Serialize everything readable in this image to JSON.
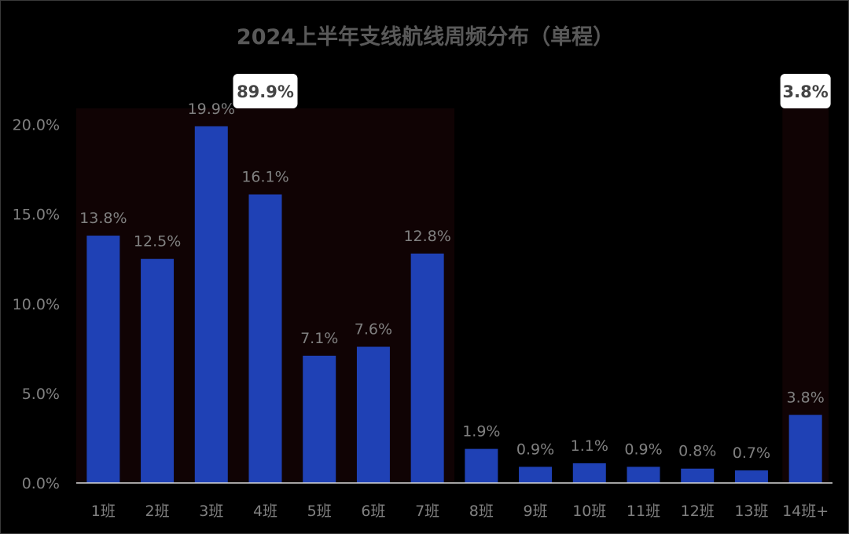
{
  "chart_data": {
    "type": "bar",
    "title": "2024上半年支线航线周频分布（单程）",
    "categories": [
      "1班",
      "2班",
      "3班",
      "4班",
      "5班",
      "6班",
      "7班",
      "8班",
      "9班",
      "10班",
      "11班",
      "12班",
      "13班",
      "14班+"
    ],
    "values": [
      13.8,
      12.5,
      19.9,
      16.1,
      7.1,
      7.6,
      12.8,
      1.9,
      0.9,
      1.1,
      0.9,
      0.8,
      0.7,
      3.8
    ],
    "data_labels": [
      "13.8%",
      "12.5%",
      "19.9%",
      "16.1%",
      "7.1%",
      "7.6%",
      "12.8%",
      "1.9%",
      "0.9%",
      "1.1%",
      "0.9%",
      "0.8%",
      "0.7%",
      "3.8%"
    ],
    "yticks": [
      0,
      5,
      10,
      15,
      20
    ],
    "ytick_labels": [
      "0.0%",
      "5.0%",
      "10.0%",
      "15.0%",
      "20.0%"
    ],
    "ylim": [
      0,
      20.9
    ],
    "xlabel": "",
    "ylabel": "",
    "grid": false,
    "legend": "none",
    "highlight_groups": [
      {
        "from_index": 0,
        "to_index": 6,
        "label": "89.9%"
      },
      {
        "from_index": 13,
        "to_index": 13,
        "label": "3.8%"
      }
    ],
    "colors": {
      "bar": "#1f41b5",
      "background": "#000000",
      "highlight_band": "#100304",
      "callout_fill": "#ffffff",
      "callout_text": "#444444",
      "text": "#808080",
      "title": "#595959",
      "axis_line": "#d9d9d9"
    }
  }
}
